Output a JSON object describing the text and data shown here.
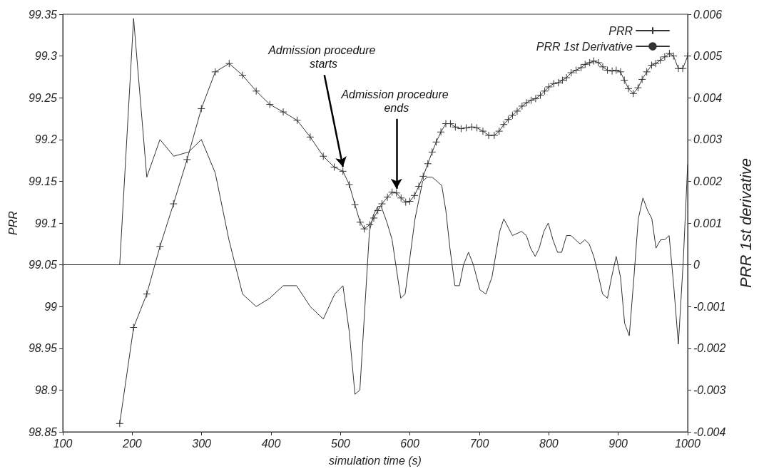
{
  "chart_data": {
    "type": "line",
    "xlabel": "simulation time (s)",
    "ylabel": "PRR",
    "y2label": "PRR 1st derivative",
    "xlim": [
      100,
      1000
    ],
    "xticks": [
      100,
      200,
      300,
      400,
      500,
      600,
      700,
      800,
      900,
      1000
    ],
    "ylim": [
      98.85,
      99.35
    ],
    "yticks": [
      98.85,
      98.9,
      98.95,
      99,
      99.05,
      99.1,
      99.15,
      99.2,
      99.25,
      99.3,
      99.35
    ],
    "y2lim": [
      -0.004,
      0.006
    ],
    "y2ticks": [
      -0.004,
      -0.003,
      -0.002,
      -0.001,
      0,
      0.001,
      0.002,
      0.003,
      0.004,
      0.005,
      0.006
    ],
    "grid": false,
    "legend": "top right",
    "ref_lines": [
      {
        "axis": "y2",
        "value": 0,
        "color": "#333333"
      }
    ],
    "line_style": "solid",
    "series": [
      {
        "name": "PRR",
        "color": "#333333",
        "marker": "cross",
        "x": [
          182,
          202,
          221,
          240,
          259.5,
          279,
          299.6,
          319.6,
          339.7,
          358.9,
          378.6,
          398.2,
          417.5,
          437.5,
          456.4,
          475.2,
          491,
          503.5,
          512.6,
          520.8,
          528.3,
          534.2,
          542,
          548,
          553.8,
          559.7,
          567.6,
          574.3,
          580.6,
          587.2,
          593.9,
          599.8,
          606.5,
          612.8,
          619.1,
          625.8,
          632,
          637.9,
          644.6,
          651.7,
          658.3,
          665.4,
          673.7,
          681.1,
          689,
          696.5,
          705.1,
          713.4,
          721.4,
          728.5,
          735.2,
          741.5,
          747.7,
          754.4,
          761.5,
          767.8,
          774.5,
          781.1,
          787.8,
          794.1,
          800,
          807.1,
          813.8,
          819.6,
          825.5,
          832.2,
          839.3,
          846.4,
          852.3,
          858.9,
          864.8,
          871.5,
          877.8,
          884.5,
          891.2,
          897.1,
          903.3,
          908.8,
          914.7,
          921.7,
          928.5,
          934.4,
          941.1,
          948.1,
          954,
          960.7,
          967,
          973.7,
          979.6,
          986.6,
          992.9,
          1000
        ],
        "values": [
          98.86,
          98.975,
          99.015,
          99.072,
          99.123,
          99.176,
          99.237,
          99.281,
          99.291,
          99.277,
          99.258,
          99.242,
          99.233,
          99.223,
          99.203,
          99.18,
          99.167,
          99.162,
          99.146,
          99.122,
          99.101,
          99.093,
          99.098,
          99.106,
          99.115,
          99.123,
          99.131,
          99.137,
          99.136,
          99.13,
          99.125,
          99.126,
          99.133,
          99.144,
          99.156,
          99.171,
          99.185,
          99.197,
          99.209,
          99.219,
          99.219,
          99.215,
          99.213,
          99.214,
          99.215,
          99.214,
          99.21,
          99.205,
          99.205,
          99.21,
          99.218,
          99.224,
          99.229,
          99.234,
          99.24,
          99.244,
          99.247,
          99.249,
          99.253,
          99.258,
          99.263,
          99.267,
          99.268,
          99.271,
          99.274,
          99.28,
          99.283,
          99.286,
          99.29,
          99.292,
          99.294,
          99.292,
          99.287,
          99.283,
          99.282,
          99.283,
          99.281,
          99.271,
          99.261,
          99.255,
          99.262,
          99.272,
          99.281,
          99.289,
          99.291,
          99.295,
          99.299,
          99.303,
          99.3,
          99.285,
          99.285,
          99.3
        ]
      },
      {
        "name": "PRR 1st Derivative",
        "color": "#333333",
        "marker": "none",
        "axis": "y2",
        "x": [
          182,
          202,
          221,
          240,
          259.9,
          281.1,
          299.6,
          319.6,
          339.3,
          358.9,
          378.6,
          398.2,
          417.5,
          436.7,
          456.4,
          475.2,
          491.7,
          503.5,
          512.6,
          520.8,
          527.9,
          541.7,
          547.5,
          553.8,
          558.5,
          567.2,
          574.3,
          586.8,
          593.1,
          607.3,
          618.3,
          625,
          632,
          645.8,
          651.7,
          657.6,
          664.7,
          671.3,
          677.2,
          684.3,
          691.4,
          700.8,
          709.4,
          718.1,
          729.3,
          735.2,
          747.7,
          760.7,
          767.8,
          773.7,
          780.4,
          786.2,
          792.9,
          799.2,
          805.9,
          812.6,
          818.5,
          825.5,
          831.8,
          838.5,
          845.2,
          851.9,
          858.1,
          864.8,
          870.7,
          877.4,
          884.5,
          890.4,
          897.1,
          903.3,
          909.2,
          915.9,
          922.6,
          928.9,
          935.6,
          942.3,
          948.5,
          954.4,
          961.1,
          967,
          973.3,
          979.9,
          986.6,
          993.7,
          1000
        ],
        "values": [
          0,
          0.0059,
          0.0021,
          0.003,
          0.0026,
          0.0027,
          0.003,
          0.0022,
          0.0006,
          -0.0007,
          -0.001,
          -0.0008,
          -0.0005,
          -0.0005,
          -0.001,
          -0.0013,
          -0.0007,
          -0.0005,
          -0.0016,
          -0.0031,
          -0.003,
          0.0008,
          0.0012,
          0.0014,
          0.0014,
          0.001,
          0.0006,
          -0.0008,
          -0.0007,
          0.0011,
          0.002,
          0.0021,
          0.0021,
          0.0019,
          0.0013,
          0.0004,
          -0.0005,
          -0.0005,
          0,
          0.0003,
          0,
          -0.0006,
          -0.0007,
          -0.0003,
          0.0008,
          0.0011,
          0.0007,
          0.0008,
          0.0007,
          0.0004,
          0.0002,
          0.0004,
          0.0008,
          0.001,
          0.0006,
          0.0003,
          0.0003,
          0.0007,
          0.0007,
          0.0006,
          0.0005,
          0.0006,
          0.0005,
          0.0002,
          -0.0002,
          -0.0007,
          -0.0008,
          -0.0003,
          0.0002,
          -0.0003,
          -0.0014,
          -0.0017,
          -0.0003,
          0.0011,
          0.0016,
          0.0013,
          0.0011,
          0.0004,
          0.0006,
          0.0006,
          0.0007,
          -0.0005,
          -0.0019,
          0.0001,
          0.0024
        ]
      }
    ],
    "annotations": [
      {
        "text": "Admission procedure starts",
        "x": 503.5,
        "y": 99.162
      },
      {
        "text": "Admission procedure ends",
        "x": 580.6,
        "y": 99.136
      }
    ]
  }
}
